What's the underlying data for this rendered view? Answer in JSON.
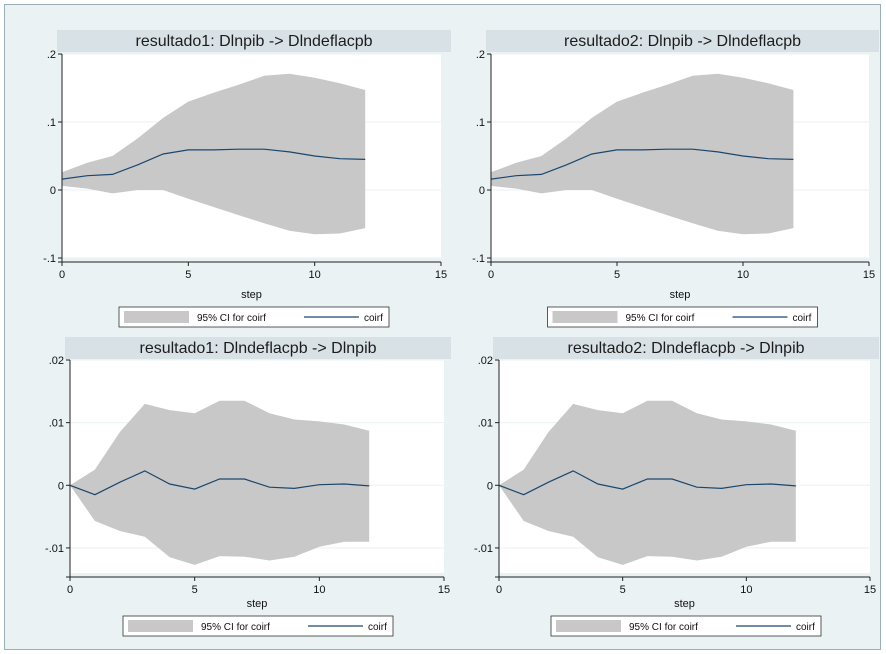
{
  "colors": {
    "frame_background": "#eaf2f3",
    "plot_background": "#ffffff",
    "title_bar": "#d8e2e6",
    "ci_band": "#c8c8c8",
    "irf_line": "#1a476f",
    "grid": "#eaf2f3"
  },
  "chart_data": [
    {
      "type": "area",
      "title": "resultado1: Dlnpib -> Dlndeflacpb",
      "xlabel": "step",
      "ylabel": "",
      "xlim": [
        0,
        15
      ],
      "ylim": [
        -0.1,
        0.2
      ],
      "xticks": [
        0,
        5,
        10,
        15
      ],
      "xtick_labels": [
        "0",
        "5",
        "10",
        "15"
      ],
      "yticks": [
        -0.1,
        0,
        0.1,
        0.2
      ],
      "ytick_labels": [
        "-.1",
        "0",
        ".1",
        ".2"
      ],
      "grid": true,
      "legend_position": "bottom",
      "x": [
        0,
        1,
        2,
        3,
        4,
        5,
        6,
        7,
        8,
        9,
        10,
        11,
        12
      ],
      "series": [
        {
          "name": "coirf",
          "values": [
            0.016,
            0.021,
            0.023,
            0.037,
            0.053,
            0.059,
            0.059,
            0.06,
            0.06,
            0.056,
            0.05,
            0.046,
            0.045
          ]
        },
        {
          "name": "95% CI for coirf",
          "upper": [
            0.026,
            0.04,
            0.05,
            0.076,
            0.106,
            0.13,
            0.143,
            0.155,
            0.168,
            0.171,
            0.165,
            0.157,
            0.147
          ],
          "lower": [
            0.006,
            0.002,
            -0.005,
            0.0,
            0.0,
            -0.013,
            -0.025,
            -0.037,
            -0.049,
            -0.06,
            -0.065,
            -0.064,
            -0.056
          ]
        }
      ],
      "legend": [
        "95% CI for coirf",
        "coirf"
      ]
    },
    {
      "type": "area",
      "title": "resultado2: Dlnpib -> Dlndeflacpb",
      "xlabel": "step",
      "ylabel": "",
      "xlim": [
        0,
        15
      ],
      "ylim": [
        -0.1,
        0.2
      ],
      "xticks": [
        0,
        5,
        10,
        15
      ],
      "xtick_labels": [
        "0",
        "5",
        "10",
        "15"
      ],
      "yticks": [
        -0.1,
        0,
        0.1,
        0.2
      ],
      "ytick_labels": [
        "-.1",
        "0",
        ".1",
        ".2"
      ],
      "grid": true,
      "legend_position": "bottom",
      "x": [
        0,
        1,
        2,
        3,
        4,
        5,
        6,
        7,
        8,
        9,
        10,
        11,
        12
      ],
      "series": [
        {
          "name": "coirf",
          "values": [
            0.016,
            0.021,
            0.023,
            0.037,
            0.053,
            0.059,
            0.059,
            0.06,
            0.06,
            0.056,
            0.05,
            0.046,
            0.045
          ]
        },
        {
          "name": "95% CI for coirf",
          "upper": [
            0.026,
            0.04,
            0.05,
            0.076,
            0.106,
            0.13,
            0.143,
            0.155,
            0.168,
            0.171,
            0.165,
            0.157,
            0.147
          ],
          "lower": [
            0.006,
            0.002,
            -0.005,
            0.0,
            0.0,
            -0.013,
            -0.025,
            -0.037,
            -0.049,
            -0.06,
            -0.065,
            -0.064,
            -0.056
          ]
        }
      ],
      "legend": [
        "95% CI for coirf",
        "coirf"
      ]
    },
    {
      "type": "area",
      "title": "resultado1: Dlndeflacpb -> Dlnpib",
      "xlabel": "step",
      "ylabel": "",
      "xlim": [
        0,
        15
      ],
      "ylim": [
        -0.014,
        0.02
      ],
      "xticks": [
        0,
        5,
        10,
        15
      ],
      "xtick_labels": [
        "0",
        "5",
        "10",
        "15"
      ],
      "yticks": [
        -0.01,
        0,
        0.01,
        0.02
      ],
      "ytick_labels": [
        "-.01",
        "0",
        ".01",
        ".02"
      ],
      "grid": true,
      "legend_position": "bottom",
      "x": [
        0,
        1,
        2,
        3,
        4,
        5,
        6,
        7,
        8,
        9,
        10,
        11,
        12
      ],
      "series": [
        {
          "name": "coirf",
          "values": [
            0.0,
            -0.0015,
            0.0005,
            0.0023,
            0.0002,
            -0.0006,
            0.001,
            0.001,
            -0.0003,
            -0.0005,
            0.0001,
            0.0002,
            -0.0001
          ]
        },
        {
          "name": "95% CI for coirf",
          "upper": [
            0.0,
            0.0025,
            0.0085,
            0.013,
            0.012,
            0.0115,
            0.0135,
            0.0135,
            0.0115,
            0.0105,
            0.0102,
            0.0097,
            0.0087
          ],
          "lower": [
            0.0,
            -0.0057,
            -0.0073,
            -0.0082,
            -0.0115,
            -0.0127,
            -0.0113,
            -0.0114,
            -0.012,
            -0.0114,
            -0.0098,
            -0.009,
            -0.009
          ]
        }
      ],
      "legend": [
        "95% CI for coirf",
        "coirf"
      ]
    },
    {
      "type": "area",
      "title": "resultado2: Dlndeflacpb -> Dlnpib",
      "xlabel": "step",
      "ylabel": "",
      "xlim": [
        0,
        15
      ],
      "ylim": [
        -0.014,
        0.02
      ],
      "xticks": [
        0,
        5,
        10,
        15
      ],
      "xtick_labels": [
        "0",
        "5",
        "10",
        "15"
      ],
      "yticks": [
        -0.01,
        0,
        0.01,
        0.02
      ],
      "ytick_labels": [
        "-.01",
        "0",
        ".01",
        ".02"
      ],
      "grid": true,
      "legend_position": "bottom",
      "x": [
        0,
        1,
        2,
        3,
        4,
        5,
        6,
        7,
        8,
        9,
        10,
        11,
        12
      ],
      "series": [
        {
          "name": "coirf",
          "values": [
            0.0,
            -0.0015,
            0.0005,
            0.0023,
            0.0002,
            -0.0006,
            0.001,
            0.001,
            -0.0003,
            -0.0005,
            0.0001,
            0.0002,
            -0.0001
          ]
        },
        {
          "name": "95% CI for coirf",
          "upper": [
            0.0,
            0.0025,
            0.0085,
            0.013,
            0.012,
            0.0115,
            0.0135,
            0.0135,
            0.0115,
            0.0105,
            0.0102,
            0.0097,
            0.0087
          ],
          "lower": [
            0.0,
            -0.0057,
            -0.0073,
            -0.0082,
            -0.0115,
            -0.0127,
            -0.0113,
            -0.0114,
            -0.012,
            -0.0114,
            -0.0098,
            -0.009,
            -0.009
          ]
        }
      ],
      "legend": [
        "95% CI for coirf",
        "coirf"
      ]
    }
  ]
}
